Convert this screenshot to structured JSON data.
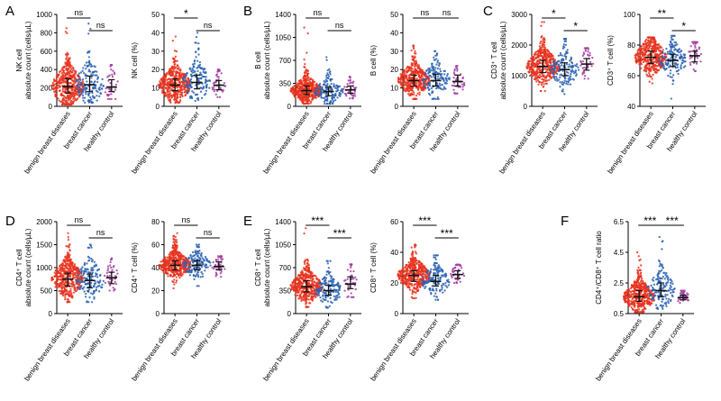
{
  "colors": {
    "benign": "#e8331e",
    "cancer": "#2a62b0",
    "control": "#a53da3",
    "axis": "#000000"
  },
  "categories": [
    "benign breast diseases",
    "breast cancer",
    "healthy control"
  ],
  "panel_letters": [
    "A",
    "B",
    "C",
    "D",
    "E",
    "F"
  ],
  "chart_data": [
    {
      "type": "scatter",
      "panel": "A",
      "ylabel_lines": [
        "NK cell",
        "absolute count (cells/µL)"
      ],
      "ylim": [
        0,
        1000
      ],
      "yticks": [
        "0",
        "200",
        "400",
        "600",
        "800",
        "1000"
      ],
      "categories": [
        "benign breast diseases",
        "breast cancer",
        "healthy control"
      ],
      "series": [
        {
          "name": "benign breast diseases",
          "median": 215,
          "q1": 145,
          "q3": 300,
          "min": 20,
          "max": 850,
          "n": 420
        },
        {
          "name": "breast cancer",
          "median": 235,
          "q1": 160,
          "q3": 330,
          "min": 40,
          "max": 900,
          "n": 150
        },
        {
          "name": "healthy control",
          "median": 210,
          "q1": 160,
          "q3": 290,
          "min": 80,
          "max": 450,
          "n": 40
        }
      ],
      "comparisons": [
        {
          "from": 0,
          "to": 1,
          "label": "ns",
          "level": 0
        },
        {
          "from": 1,
          "to": 2,
          "label": "ns",
          "level": 1
        }
      ]
    },
    {
      "type": "scatter",
      "panel": "A",
      "ylabel_lines": [
        "NK cell (%)"
      ],
      "ylim": [
        0,
        50
      ],
      "yticks": [
        "0",
        "10",
        "20",
        "30",
        "40",
        "50"
      ],
      "categories": [
        "benign breast diseases",
        "breast cancer",
        "healthy control"
      ],
      "series": [
        {
          "name": "benign breast diseases",
          "median": 11.5,
          "q1": 8.5,
          "q3": 15,
          "min": 2,
          "max": 38,
          "n": 420
        },
        {
          "name": "breast cancer",
          "median": 13,
          "q1": 9.5,
          "q3": 17,
          "min": 3,
          "max": 40,
          "n": 150
        },
        {
          "name": "healthy control",
          "median": 11.5,
          "q1": 9,
          "q3": 14,
          "min": 5,
          "max": 20,
          "n": 40
        }
      ],
      "comparisons": [
        {
          "from": 0,
          "to": 1,
          "label": "*",
          "level": 0
        },
        {
          "from": 1,
          "to": 2,
          "label": "ns",
          "level": 1
        }
      ]
    },
    {
      "type": "scatter",
      "panel": "B",
      "ylabel_lines": [
        "B cell",
        "absolute count (cells/µL)"
      ],
      "ylim": [
        0,
        1400
      ],
      "yticks": [
        "0",
        "350",
        "700",
        "1050",
        "1400"
      ],
      "categories": [
        "benign breast diseases",
        "breast cancer",
        "healthy control"
      ],
      "series": [
        {
          "name": "benign breast diseases",
          "median": 240,
          "q1": 180,
          "q3": 310,
          "min": 40,
          "max": 1200,
          "n": 420
        },
        {
          "name": "breast cancer",
          "median": 225,
          "q1": 160,
          "q3": 290,
          "min": 40,
          "max": 750,
          "n": 150
        },
        {
          "name": "healthy control",
          "median": 250,
          "q1": 200,
          "q3": 310,
          "min": 120,
          "max": 450,
          "n": 40
        }
      ],
      "comparisons": [
        {
          "from": 0,
          "to": 1,
          "label": "ns",
          "level": 0
        },
        {
          "from": 1,
          "to": 2,
          "label": "ns",
          "level": 1
        }
      ]
    },
    {
      "type": "scatter",
      "panel": "B",
      "ylabel_lines": [
        "B cell (%)"
      ],
      "ylim": [
        0,
        50
      ],
      "yticks": [
        "0",
        "10",
        "20",
        "30",
        "40",
        "50"
      ],
      "categories": [
        "benign breast diseases",
        "breast cancer",
        "healthy control"
      ],
      "series": [
        {
          "name": "benign breast diseases",
          "median": 14,
          "q1": 11,
          "q3": 17,
          "min": 4,
          "max": 33,
          "n": 420
        },
        {
          "name": "breast cancer",
          "median": 14,
          "q1": 11,
          "q3": 17.5,
          "min": 4,
          "max": 30,
          "n": 150
        },
        {
          "name": "healthy control",
          "median": 13.5,
          "q1": 11,
          "q3": 17,
          "min": 7,
          "max": 22,
          "n": 40
        }
      ],
      "comparisons": [
        {
          "from": 0,
          "to": 1,
          "label": "ns",
          "level": 0
        },
        {
          "from": 1,
          "to": 2,
          "label": "ns",
          "level": 0
        }
      ]
    },
    {
      "type": "scatter",
      "panel": "C",
      "ylabel_lines": [
        "CD3⁺ T cell",
        "absolute count (cells/µL)"
      ],
      "ylim": [
        0,
        3000
      ],
      "yticks": [
        "0",
        "1000",
        "2000",
        "3000"
      ],
      "categories": [
        "benign breast diseases",
        "breast cancer",
        "healthy control"
      ],
      "series": [
        {
          "name": "benign breast diseases",
          "median": 1300,
          "q1": 1100,
          "q3": 1500,
          "min": 500,
          "max": 2750,
          "n": 420
        },
        {
          "name": "breast cancer",
          "median": 1200,
          "q1": 1000,
          "q3": 1420,
          "min": 400,
          "max": 2200,
          "n": 150
        },
        {
          "name": "healthy control",
          "median": 1380,
          "q1": 1180,
          "q3": 1560,
          "min": 900,
          "max": 1900,
          "n": 40
        }
      ],
      "comparisons": [
        {
          "from": 0,
          "to": 1,
          "label": "*",
          "level": 0
        },
        {
          "from": 1,
          "to": 2,
          "label": "*",
          "level": 1
        }
      ]
    },
    {
      "type": "scatter",
      "panel": "C",
      "ylabel_lines": [
        "CD3⁺ T cell (%)"
      ],
      "ylim": [
        40,
        100
      ],
      "yticks": [
        "40",
        "60",
        "80",
        "100"
      ],
      "categories": [
        "benign breast diseases",
        "breast cancer",
        "healthy control"
      ],
      "series": [
        {
          "name": "benign breast diseases",
          "median": 72,
          "q1": 68,
          "q3": 76,
          "min": 55,
          "max": 85,
          "n": 420
        },
        {
          "name": "breast cancer",
          "median": 70,
          "q1": 66,
          "q3": 74,
          "min": 45,
          "max": 86,
          "n": 150
        },
        {
          "name": "healthy control",
          "median": 73,
          "q1": 69,
          "q3": 76,
          "min": 63,
          "max": 82,
          "n": 40
        }
      ],
      "comparisons": [
        {
          "from": 0,
          "to": 1,
          "label": "**",
          "level": 0
        },
        {
          "from": 1,
          "to": 2,
          "label": "*",
          "level": 1
        }
      ]
    },
    {
      "type": "scatter",
      "panel": "D",
      "ylabel_lines": [
        "CD4⁺ T cell",
        "absolute count (cells/µL)"
      ],
      "ylim": [
        0,
        2000
      ],
      "yticks": [
        "0",
        "500",
        "1000",
        "1500",
        "2000"
      ],
      "categories": [
        "benign breast diseases",
        "breast cancer",
        "healthy control"
      ],
      "series": [
        {
          "name": "benign breast diseases",
          "median": 750,
          "q1": 600,
          "q3": 880,
          "min": 250,
          "max": 1750,
          "n": 420
        },
        {
          "name": "breast cancer",
          "median": 720,
          "q1": 560,
          "q3": 860,
          "min": 250,
          "max": 1500,
          "n": 150
        },
        {
          "name": "healthy control",
          "median": 780,
          "q1": 650,
          "q3": 900,
          "min": 500,
          "max": 1200,
          "n": 40
        }
      ],
      "comparisons": [
        {
          "from": 0,
          "to": 1,
          "label": "ns",
          "level": 0
        },
        {
          "from": 1,
          "to": 2,
          "label": "ns",
          "level": 1
        }
      ]
    },
    {
      "type": "scatter",
      "panel": "D",
      "ylabel_lines": [
        "CD4⁺ T cell (%)"
      ],
      "ylim": [
        0,
        80
      ],
      "yticks": [
        "0",
        "20",
        "40",
        "60",
        "80"
      ],
      "categories": [
        "benign breast diseases",
        "breast cancer",
        "healthy control"
      ],
      "series": [
        {
          "name": "benign breast diseases",
          "median": 42,
          "q1": 38,
          "q3": 46,
          "min": 22,
          "max": 70,
          "n": 420
        },
        {
          "name": "breast cancer",
          "median": 42,
          "q1": 38,
          "q3": 46,
          "min": 24,
          "max": 60,
          "n": 150
        },
        {
          "name": "healthy control",
          "median": 41,
          "q1": 38,
          "q3": 45,
          "min": 32,
          "max": 50,
          "n": 40
        }
      ],
      "comparisons": [
        {
          "from": 0,
          "to": 1,
          "label": "ns",
          "level": 0
        },
        {
          "from": 1,
          "to": 2,
          "label": "ns",
          "level": 1
        }
      ]
    },
    {
      "type": "scatter",
      "panel": "E",
      "ylabel_lines": [
        "CD8⁺ T cell",
        "absolute count (cells/µL)"
      ],
      "ylim": [
        0,
        1400
      ],
      "yticks": [
        "0",
        "350",
        "700",
        "1050",
        "1400"
      ],
      "categories": [
        "benign breast diseases",
        "breast cancer",
        "healthy control"
      ],
      "series": [
        {
          "name": "benign breast diseases",
          "median": 410,
          "q1": 330,
          "q3": 500,
          "min": 100,
          "max": 1300,
          "n": 420
        },
        {
          "name": "breast cancer",
          "median": 350,
          "q1": 280,
          "q3": 430,
          "min": 90,
          "max": 800,
          "n": 150
        },
        {
          "name": "healthy control",
          "median": 450,
          "q1": 380,
          "q3": 560,
          "min": 250,
          "max": 750,
          "n": 40
        }
      ],
      "comparisons": [
        {
          "from": 0,
          "to": 1,
          "label": "***",
          "level": 0
        },
        {
          "from": 1,
          "to": 2,
          "label": "***",
          "level": 1
        }
      ]
    },
    {
      "type": "scatter",
      "panel": "E",
      "ylabel_lines": [
        "CD8⁺ T cell (%)"
      ],
      "ylim": [
        0,
        60
      ],
      "yticks": [
        "0",
        "20",
        "40",
        "60"
      ],
      "categories": [
        "benign breast diseases",
        "breast cancer",
        "healthy control"
      ],
      "series": [
        {
          "name": "benign breast diseases",
          "median": 25,
          "q1": 21,
          "q3": 28,
          "min": 10,
          "max": 45,
          "n": 420
        },
        {
          "name": "breast cancer",
          "median": 21,
          "q1": 18,
          "q3": 25,
          "min": 9,
          "max": 38,
          "n": 150
        },
        {
          "name": "healthy control",
          "median": 25.5,
          "q1": 23,
          "q3": 28,
          "min": 20,
          "max": 32,
          "n": 40
        }
      ],
      "comparisons": [
        {
          "from": 0,
          "to": 1,
          "label": "***",
          "level": 0
        },
        {
          "from": 1,
          "to": 2,
          "label": "***",
          "level": 1
        }
      ]
    },
    {
      "type": "scatter",
      "panel": "F",
      "ylabel_lines": [
        "CD4⁺/CD8⁺ T cell ratio"
      ],
      "ylim": [
        0.5,
        6.5
      ],
      "yticks": [
        "0.5",
        "2.5",
        "4.5",
        "6.5"
      ],
      "categories": [
        "benign breast diseases",
        "breast cancer",
        "healthy control"
      ],
      "series": [
        {
          "name": "benign breast diseases",
          "median": 1.6,
          "q1": 1.3,
          "q3": 2.0,
          "min": 0.6,
          "max": 4.5,
          "n": 420
        },
        {
          "name": "breast cancer",
          "median": 2.0,
          "q1": 1.6,
          "q3": 2.5,
          "min": 0.8,
          "max": 5.5,
          "n": 150
        },
        {
          "name": "healthy control",
          "median": 1.55,
          "q1": 1.4,
          "q3": 1.7,
          "min": 1.2,
          "max": 2.0,
          "n": 40
        }
      ],
      "comparisons": [
        {
          "from": 0,
          "to": 1,
          "label": "***",
          "level": 0
        },
        {
          "from": 1,
          "to": 2,
          "label": "***",
          "level": 0
        }
      ]
    }
  ]
}
